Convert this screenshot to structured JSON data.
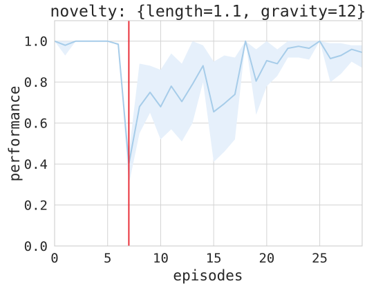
{
  "chart_data": {
    "type": "line",
    "title": "novelty: {length=1.1, gravity=12}",
    "xlabel": "episodes",
    "ylabel": "performance",
    "xlim": [
      0,
      29
    ],
    "ylim": [
      0.0,
      1.1
    ],
    "x_ticks": [
      0,
      5,
      10,
      15,
      20,
      25
    ],
    "y_ticks": [
      0.0,
      0.2,
      0.4,
      0.6,
      0.8,
      1.0
    ],
    "x_tick_labels": [
      "0",
      "5",
      "10",
      "15",
      "20",
      "25"
    ],
    "y_tick_labels": [
      "0.0",
      "0.2",
      "0.4",
      "0.6",
      "0.8",
      "1.0"
    ],
    "grid": true,
    "legend": "none",
    "series": [
      {
        "color": "#a6cce9",
        "band_color": "#e6f0fb",
        "x": [
          0,
          1,
          2,
          3,
          4,
          5,
          6,
          7,
          8,
          9,
          10,
          11,
          12,
          13,
          14,
          15,
          16,
          17,
          18,
          19,
          20,
          21,
          22,
          23,
          24,
          25,
          26,
          27,
          28,
          29
        ],
        "y": [
          1.0,
          0.98,
          1.0,
          1.0,
          1.0,
          1.0,
          0.985,
          0.4,
          0.68,
          0.75,
          0.68,
          0.78,
          0.705,
          0.79,
          0.88,
          0.655,
          0.695,
          0.74,
          1.0,
          0.805,
          0.905,
          0.89,
          0.965,
          0.975,
          0.965,
          1.0,
          0.915,
          0.93,
          0.96,
          0.945
        ],
        "lower": [
          1.0,
          0.93,
          1.0,
          1.0,
          1.0,
          1.0,
          0.98,
          0.3,
          0.55,
          0.65,
          0.52,
          0.57,
          0.51,
          0.6,
          0.8,
          0.41,
          0.46,
          0.52,
          1.0,
          0.64,
          0.78,
          0.83,
          0.92,
          0.92,
          0.91,
          1.0,
          0.8,
          0.84,
          0.9,
          0.87
        ],
        "upper": [
          1.0,
          1.0,
          1.0,
          1.0,
          1.0,
          1.0,
          0.99,
          0.45,
          0.89,
          0.88,
          0.86,
          0.94,
          0.89,
          1.0,
          0.98,
          0.9,
          0.93,
          0.92,
          1.0,
          0.96,
          1.0,
          0.96,
          1.0,
          1.0,
          1.0,
          1.0,
          0.99,
          0.99,
          0.98,
          0.98
        ]
      }
    ],
    "vertical_line": {
      "x": 7,
      "color": "#e8303a"
    }
  }
}
